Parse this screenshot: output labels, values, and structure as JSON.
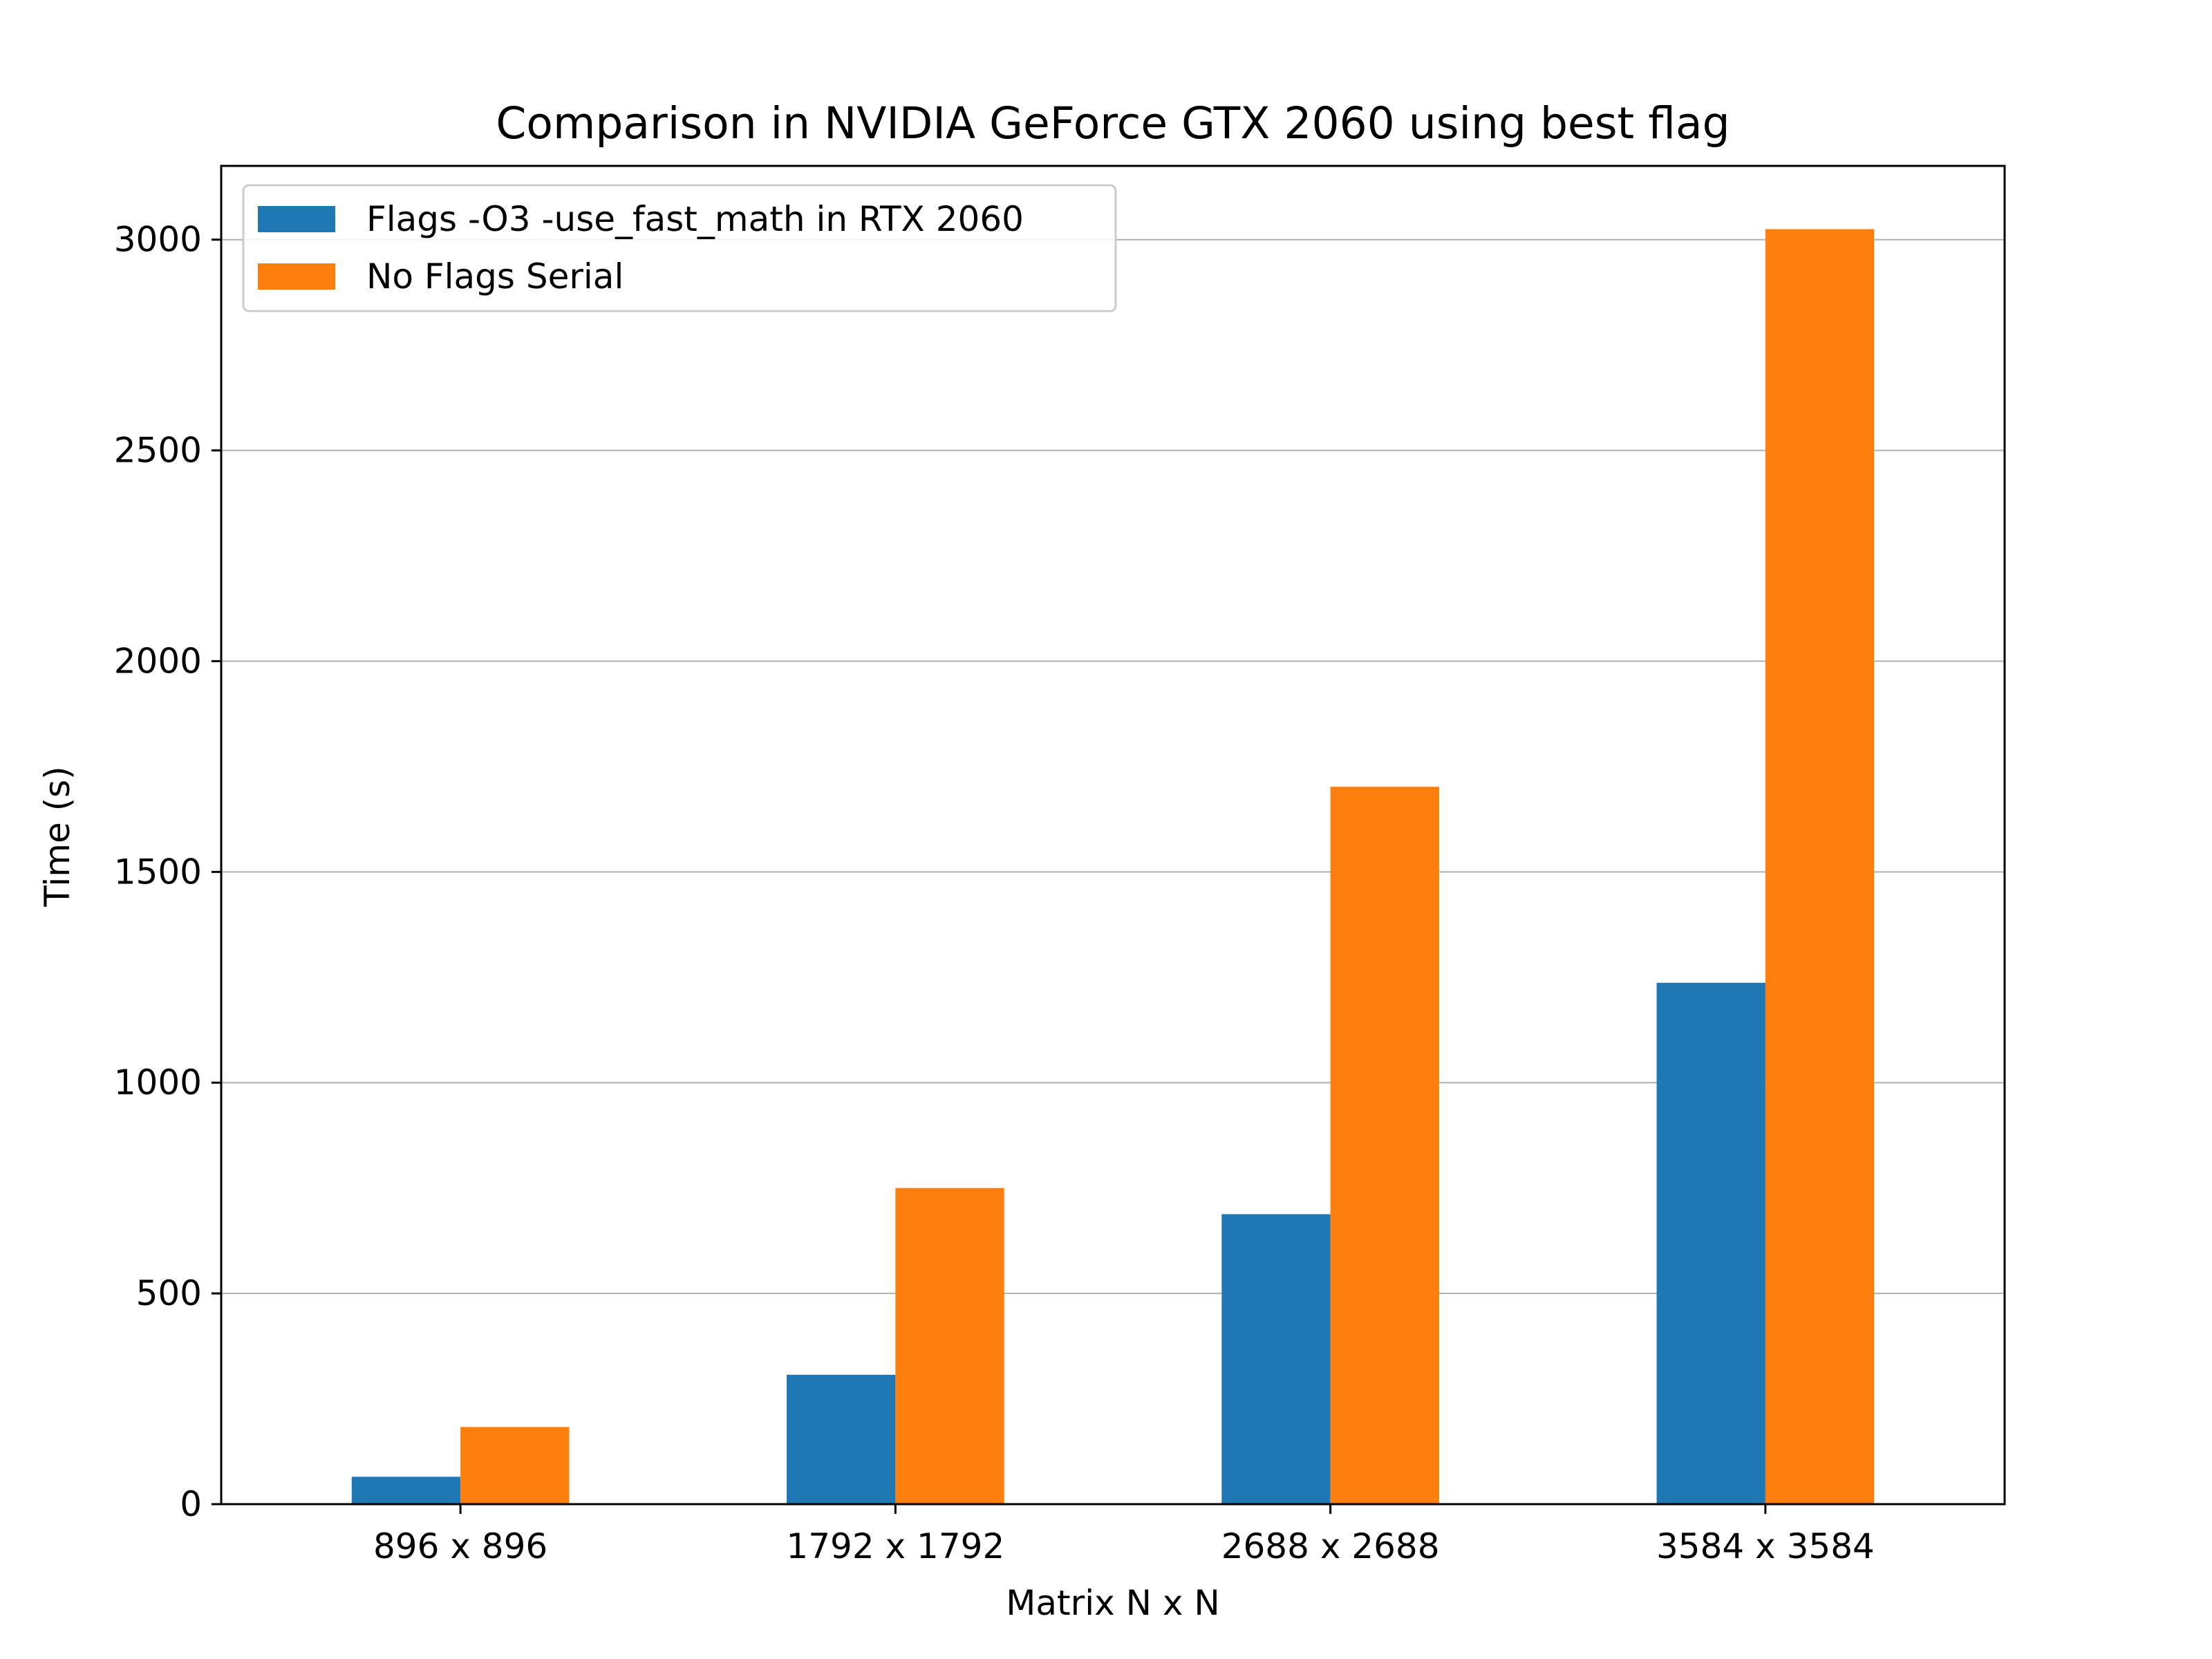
{
  "chart_data": {
    "type": "bar",
    "title": "Comparison in NVIDIA GeForce GTX 2060 using best flag",
    "xlabel": "Matrix N x N",
    "ylabel": "Time (s)",
    "categories": [
      "896 x 896",
      "1792 x 1792",
      "2688 x 2688",
      "3584 x 3584"
    ],
    "series": [
      {
        "name": "Flags -O3 -use_fast_math in RTX 2060",
        "color": "#1f77b4",
        "values": [
          65,
          307,
          688,
          1237
        ]
      },
      {
        "name": "No Flags Serial",
        "color": "#ff7f0e",
        "values": [
          183,
          750,
          1702,
          3025
        ]
      }
    ],
    "ylim": [
      0,
      3175
    ],
    "yticks": [
      0,
      500,
      1000,
      1500,
      2000,
      2500,
      3000
    ],
    "grid": "y",
    "legend": "top-left"
  }
}
